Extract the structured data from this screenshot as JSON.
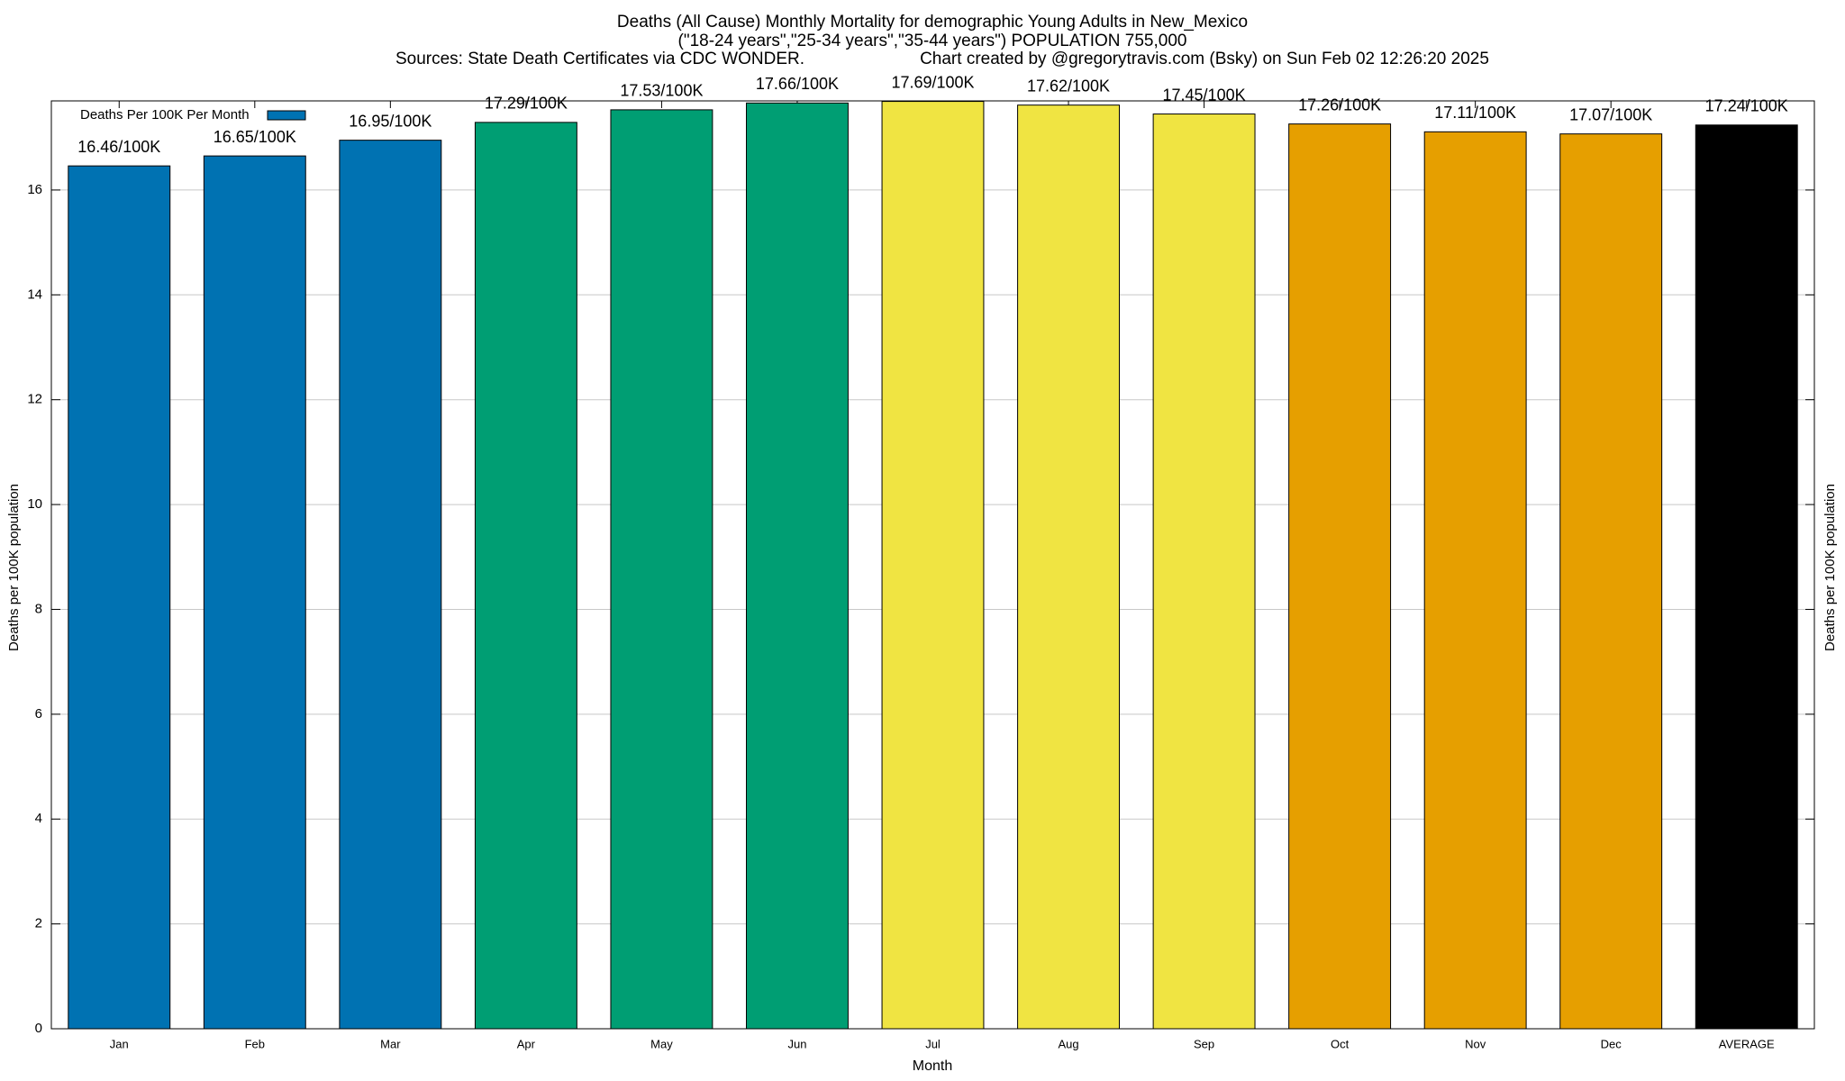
{
  "chart_data": {
    "type": "bar",
    "title": "Deaths (All Cause) Monthly Mortality for demographic Young Adults in New_Mexico",
    "subtitle": "(\"18-24 years\",\"25-34 years\",\"35-44 years\") POPULATION 755,000",
    "source": "Sources: State Death Certificates via CDC WONDER.",
    "credit": "Chart created by @gregorytravis.com (Bsky) on Sun Feb 02 12:26:20 2025",
    "xlabel": "Month",
    "ylabel": "Deaths per 100K population",
    "y2label": "Deaths per 100K population",
    "categories": [
      "Jan",
      "Feb",
      "Mar",
      "Apr",
      "May",
      "Jun",
      "Jul",
      "Aug",
      "Sep",
      "Oct",
      "Nov",
      "Dec",
      "AVERAGE"
    ],
    "series": [
      {
        "name": "Deaths Per 100K Per Month",
        "color": "#0072b2",
        "values": [
          16.46,
          16.65,
          16.95,
          17.29,
          17.53,
          17.66,
          17.69,
          17.62,
          17.45,
          17.26,
          17.11,
          17.07,
          17.24
        ],
        "value_labels": [
          "16.46/100K",
          "16.65/100K",
          "16.95/100K",
          "17.29/100K",
          "17.53/100K",
          "17.66/100K",
          "17.69/100K",
          "17.62/100K",
          "17.45/100K",
          "17.26/100K",
          "17.11/100K",
          "17.07/100K",
          "17.24/100K"
        ],
        "colors": [
          "#0072b2",
          "#0072b2",
          "#0072b2",
          "#009e73",
          "#009e73",
          "#009e73",
          "#f0e442",
          "#f0e442",
          "#f0e442",
          "#e69f00",
          "#e69f00",
          "#e69f00",
          "#000000"
        ]
      }
    ],
    "ylim": [
      0,
      17.7
    ],
    "yticks": [
      0,
      2,
      4,
      6,
      8,
      10,
      12,
      14,
      16
    ],
    "grid": true,
    "legend": "upper left"
  }
}
